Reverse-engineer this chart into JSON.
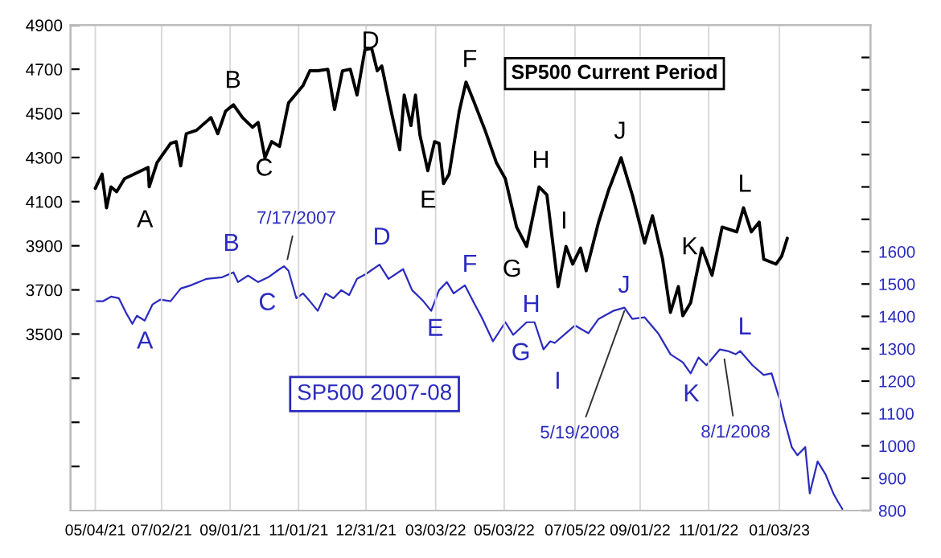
{
  "chart_data": {
    "type": "line",
    "series": [
      {
        "name": "SP500 Current Period",
        "color": "#000000",
        "x": [
          "2021-05-04",
          "2021-05-10",
          "2021-05-14",
          "2021-05-18",
          "2021-05-23",
          "2021-05-30",
          "2021-06-20",
          "2021-06-21",
          "2021-06-28",
          "2021-07-10",
          "2021-07-15",
          "2021-07-19",
          "2021-07-24",
          "2021-08-02",
          "2021-08-15",
          "2021-08-21",
          "2021-08-28",
          "2021-09-04",
          "2021-09-12",
          "2021-09-21",
          "2021-09-26",
          "2021-10-02",
          "2021-10-08",
          "2021-10-15",
          "2021-10-23",
          "2021-11-05",
          "2021-11-11",
          "2021-11-18",
          "2021-11-27",
          "2021-12-03",
          "2021-12-10",
          "2021-12-17",
          "2021-12-23",
          "2021-12-30",
          "2022-01-05",
          "2022-01-10",
          "2022-01-14",
          "2022-01-23",
          "2022-01-30",
          "2022-02-03",
          "2022-02-09",
          "2022-02-13",
          "2022-02-17",
          "2022-02-24",
          "2022-03-02",
          "2022-03-06",
          "2022-03-10",
          "2022-03-15",
          "2022-03-24",
          "2022-03-30",
          "2022-04-06",
          "2022-04-16",
          "2022-04-26",
          "2022-05-04",
          "2022-05-14",
          "2022-05-23",
          "2022-06-03",
          "2022-06-10",
          "2022-06-20",
          "2022-06-27",
          "2022-07-03",
          "2022-07-10",
          "2022-07-15",
          "2022-07-26",
          "2022-08-04",
          "2022-08-15",
          "2022-08-25",
          "2022-09-05",
          "2022-09-12",
          "2022-09-21",
          "2022-09-28",
          "2022-10-05",
          "2022-10-09",
          "2022-10-16",
          "2022-10-26",
          "2022-11-04",
          "2022-11-13",
          "2022-11-26",
          "2022-12-02",
          "2022-12-09",
          "2022-12-16",
          "2022-12-20",
          "2022-12-31",
          "2023-01-05",
          "2023-01-10"
        ],
        "values": [
          4160,
          4225,
          4072,
          4167,
          4145,
          4204,
          4255,
          4167,
          4277,
          4364,
          4372,
          4262,
          4408,
          4423,
          4481,
          4408,
          4510,
          4539,
          4481,
          4437,
          4459,
          4299,
          4372,
          4350,
          4547,
          4627,
          4693,
          4693,
          4700,
          4518,
          4693,
          4700,
          4583,
          4788,
          4795,
          4693,
          4715,
          4496,
          4335,
          4583,
          4445,
          4583,
          4401,
          4240,
          4372,
          4364,
          4182,
          4225,
          4510,
          4642,
          4554,
          4423,
          4277,
          4204,
          3985,
          3897,
          4167,
          4131,
          3715,
          3897,
          3817,
          3890,
          3787,
          4007,
          4153,
          4299,
          4131,
          3912,
          4036,
          3839,
          3598,
          3715,
          3583,
          3642,
          3890,
          3766,
          3985,
          3963,
          4072,
          3963,
          4007,
          3839,
          3817,
          3853,
          3934
        ]
      },
      {
        "name": "SP500 2007-08",
        "color": "#2b2bbf",
        "axis": "y2",
        "x": [
          "2021-05-04",
          "2021-05-11",
          "2021-05-18",
          "2021-05-25",
          "2021-06-01",
          "2021-06-06",
          "2021-06-10",
          "2021-06-17",
          "2021-06-24",
          "2021-07-01",
          "2021-07-10",
          "2021-07-19",
          "2021-07-28",
          "2021-08-11",
          "2021-08-25",
          "2021-09-04",
          "2021-09-08",
          "2021-09-17",
          "2021-09-26",
          "2021-10-05",
          "2021-10-15",
          "2021-10-19",
          "2021-10-23",
          "2021-10-30",
          "2021-11-05",
          "2021-11-11",
          "2021-11-18",
          "2021-11-25",
          "2021-12-02",
          "2021-12-09",
          "2021-12-16",
          "2021-12-23",
          "2021-12-31",
          "2022-01-12",
          "2022-01-20",
          "2022-02-02",
          "2022-02-10",
          "2022-02-20",
          "2022-02-27",
          "2022-03-06",
          "2022-03-13",
          "2022-03-19",
          "2022-03-29",
          "2022-04-06",
          "2022-04-13",
          "2022-04-23",
          "2022-05-04",
          "2022-05-11",
          "2022-05-23",
          "2022-05-30",
          "2022-06-07",
          "2022-06-13",
          "2022-06-17",
          "2022-06-27",
          "2022-07-05",
          "2022-07-17",
          "2022-07-26",
          "2022-08-08",
          "2022-08-18",
          "2022-08-25",
          "2022-09-05",
          "2022-09-17",
          "2022-09-28",
          "2022-10-09",
          "2022-10-16",
          "2022-10-23",
          "2022-10-30",
          "2022-11-11",
          "2022-11-18",
          "2022-11-25",
          "2022-11-29",
          "2022-12-10",
          "2022-12-20",
          "2022-12-27",
          "2023-01-03",
          "2023-01-07",
          "2023-01-14",
          "2023-01-19",
          "2023-01-26",
          "2023-01-30",
          "2023-02-06",
          "2023-02-13",
          "2023-02-20",
          "2023-02-24",
          "2023-02-28"
        ],
        "values": [
          1447,
          1447,
          1461,
          1456,
          1407,
          1377,
          1402,
          1387,
          1437,
          1452,
          1447,
          1486,
          1496,
          1516,
          1521,
          1536,
          1506,
          1526,
          1506,
          1521,
          1546,
          1555,
          1541,
          1456,
          1471,
          1447,
          1417,
          1471,
          1456,
          1481,
          1466,
          1516,
          1531,
          1560,
          1516,
          1546,
          1481,
          1447,
          1417,
          1481,
          1506,
          1471,
          1496,
          1442,
          1397,
          1323,
          1382,
          1343,
          1382,
          1382,
          1298,
          1323,
          1318,
          1348,
          1372,
          1348,
          1392,
          1417,
          1427,
          1392,
          1397,
          1348,
          1283,
          1258,
          1224,
          1273,
          1249,
          1298,
          1293,
          1283,
          1293,
          1249,
          1219,
          1224,
          1145,
          1085,
          996,
          971,
          996,
          853,
          952,
          912,
          853,
          828,
          805
        ]
      }
    ],
    "xlim": [
      "2021-04-12",
      "2023-03-25"
    ],
    "xticks": [
      {
        "value": "2021-05-04",
        "label": "05/04/21"
      },
      {
        "value": "2021-07-02",
        "label": "07/02/21"
      },
      {
        "value": "2021-09-01",
        "label": "09/01/21"
      },
      {
        "value": "2021-11-01",
        "label": "11/01/21"
      },
      {
        "value": "2021-12-31",
        "label": "12/31/21"
      },
      {
        "value": "2022-03-03",
        "label": "03/03/22"
      },
      {
        "value": "2022-05-03",
        "label": "05/03/22"
      },
      {
        "value": "2022-07-05",
        "label": "07/05/22"
      },
      {
        "value": "2022-09-01",
        "label": "09/01/22"
      },
      {
        "value": "2022-11-01",
        "label": "11/01/22"
      },
      {
        "value": "2023-01-03",
        "label": "01/03/23"
      }
    ],
    "ylim": [
      2700,
      4900
    ],
    "yticks": [
      {
        "value": 2900,
        "label": null
      },
      {
        "value": 3100,
        "label": null
      },
      {
        "value": 3300,
        "label": null
      },
      3500,
      3700,
      3900,
      4100,
      4300,
      4500,
      4700,
      4900
    ],
    "y2lim": [
      800,
      2300
    ],
    "y2ticks": [
      800,
      900,
      1000,
      1100,
      1200,
      1300,
      1400,
      1500,
      1600,
      {
        "value": 1700,
        "label": null
      },
      {
        "value": 1800,
        "label": null
      },
      {
        "value": 1900,
        "label": null
      },
      {
        "value": 2000,
        "label": null
      },
      {
        "value": 2100,
        "label": null
      },
      {
        "value": 2200,
        "label": null
      }
    ],
    "grid": "x",
    "legend": false,
    "annotations": [
      "A",
      "B",
      "C",
      "D",
      "E",
      "F",
      "G",
      "H",
      "I",
      "J",
      "K",
      "L",
      "A",
      "B",
      "C",
      "D",
      "E",
      "F",
      "G",
      "H",
      "I",
      "J",
      "K",
      "L",
      {
        "text": "7/17/2007",
        "x": "2021-10-22",
        "y": 3839
      },
      {
        "text": "5/19/2008",
        "x": "2022-08-18",
        "y": 3605
      },
      {
        "text": "8/1/2008",
        "x": "2022-11-15",
        "y": 3386
      }
    ]
  }
}
